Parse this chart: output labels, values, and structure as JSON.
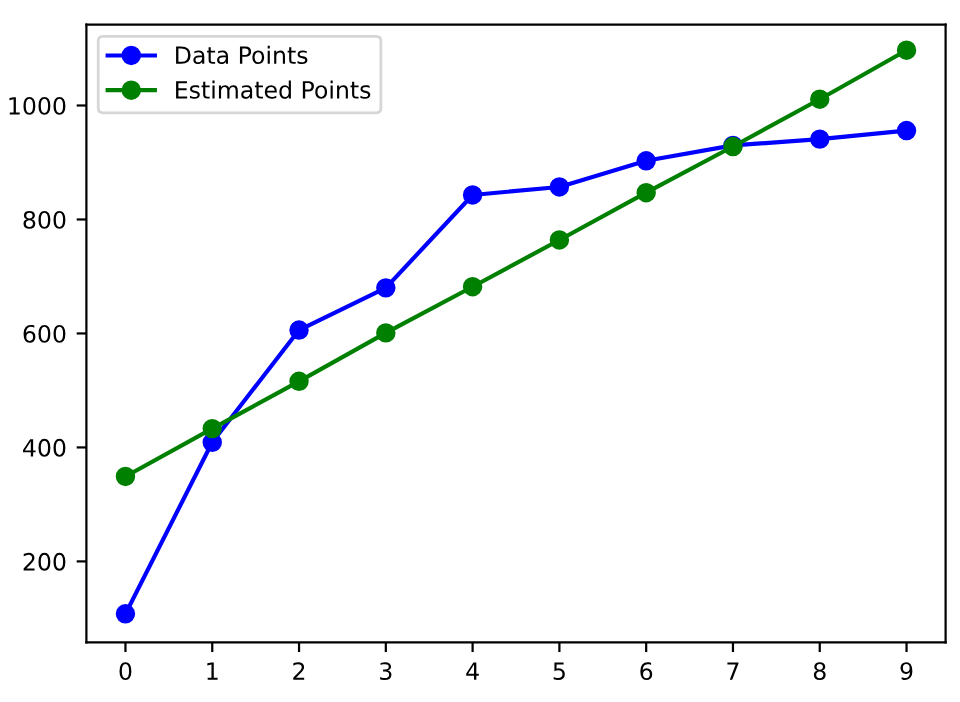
{
  "chart_data": {
    "type": "line",
    "x": [
      0,
      1,
      2,
      3,
      4,
      5,
      6,
      7,
      8,
      9
    ],
    "series": [
      {
        "name": "Data Points",
        "color": "#0000ff",
        "values": [
          108,
          409,
          606,
          680,
          843,
          857,
          903,
          930,
          941,
          956
        ]
      },
      {
        "name": "Estimated Points",
        "color": "#008000",
        "values": [
          349,
          433,
          516,
          601,
          682,
          764,
          847,
          928,
          1011,
          1097
        ]
      }
    ],
    "xlim": [
      -0.45,
      9.45
    ],
    "xticks": [
      0,
      1,
      2,
      3,
      4,
      5,
      6,
      7,
      8,
      9
    ],
    "ylim": [
      58,
      1142
    ],
    "yticks": [
      200,
      400,
      600,
      800,
      1000
    ],
    "marker": "circle",
    "line_style": "solid",
    "legend": "top left",
    "grid": false
  }
}
